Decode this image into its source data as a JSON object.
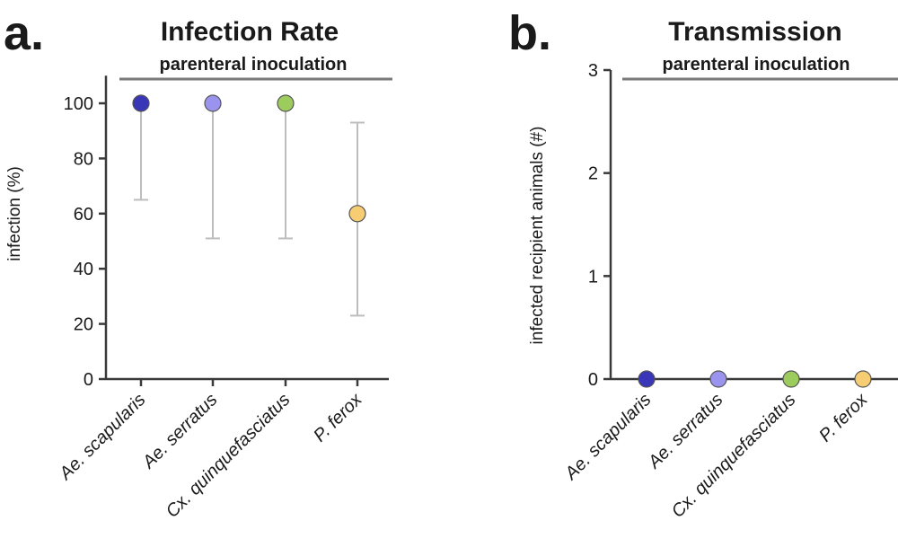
{
  "chart_data": [
    {
      "panel": "a.",
      "type": "scatter",
      "title": "Infection Rate",
      "subtitle": "parenteral inoculation",
      "ylabel": "infection (%)",
      "ylim": [
        0,
        110
      ],
      "yticks": [
        0,
        20,
        40,
        60,
        80,
        100
      ],
      "categories": [
        "Ae. scapularis",
        "Ae. serratus",
        "Cx. quinquefasciatus",
        "P. ferox"
      ],
      "values": [
        100,
        100,
        100,
        60
      ],
      "error_low": [
        65,
        51,
        51,
        23
      ],
      "error_high": [
        100,
        100,
        100,
        93
      ],
      "colors": [
        "#3a36b8",
        "#9b94ee",
        "#9ccb5e",
        "#f7cd74"
      ]
    },
    {
      "panel": "b.",
      "type": "scatter",
      "title": "Transmission",
      "subtitle": "parenteral inoculation",
      "ylabel": "infected recipient animals (#)",
      "ylim": [
        0,
        3
      ],
      "yticks": [
        0,
        1,
        2,
        3
      ],
      "categories": [
        "Ae. scapularis",
        "Ae. serratus",
        "Cx. quinquefasciatus",
        "P. ferox"
      ],
      "values": [
        0,
        0,
        0,
        0
      ],
      "colors": [
        "#3a36b8",
        "#9b94ee",
        "#9ccb5e",
        "#f7cd74"
      ]
    }
  ]
}
